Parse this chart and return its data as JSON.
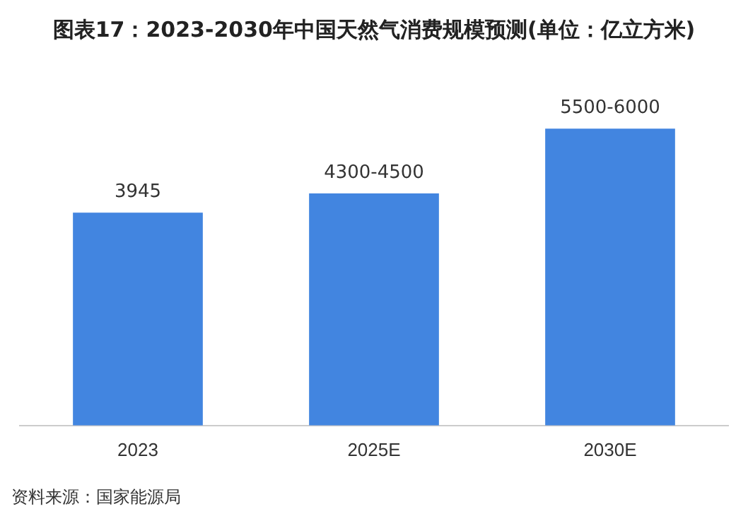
{
  "chart_data": {
    "type": "bar",
    "title": "图表17：2023-2030年中国天然气消费规模预测(单位：亿立方米)",
    "categories": [
      "2023",
      "2025E",
      "2030E"
    ],
    "values": [
      3945,
      4300,
      5500
    ],
    "value_labels": [
      "3945",
      "4300-4500",
      "5500-6000"
    ],
    "color": "#4285e0",
    "grid": false,
    "legend": false,
    "annotations": [
      "资料来源：国家能源局"
    ]
  }
}
